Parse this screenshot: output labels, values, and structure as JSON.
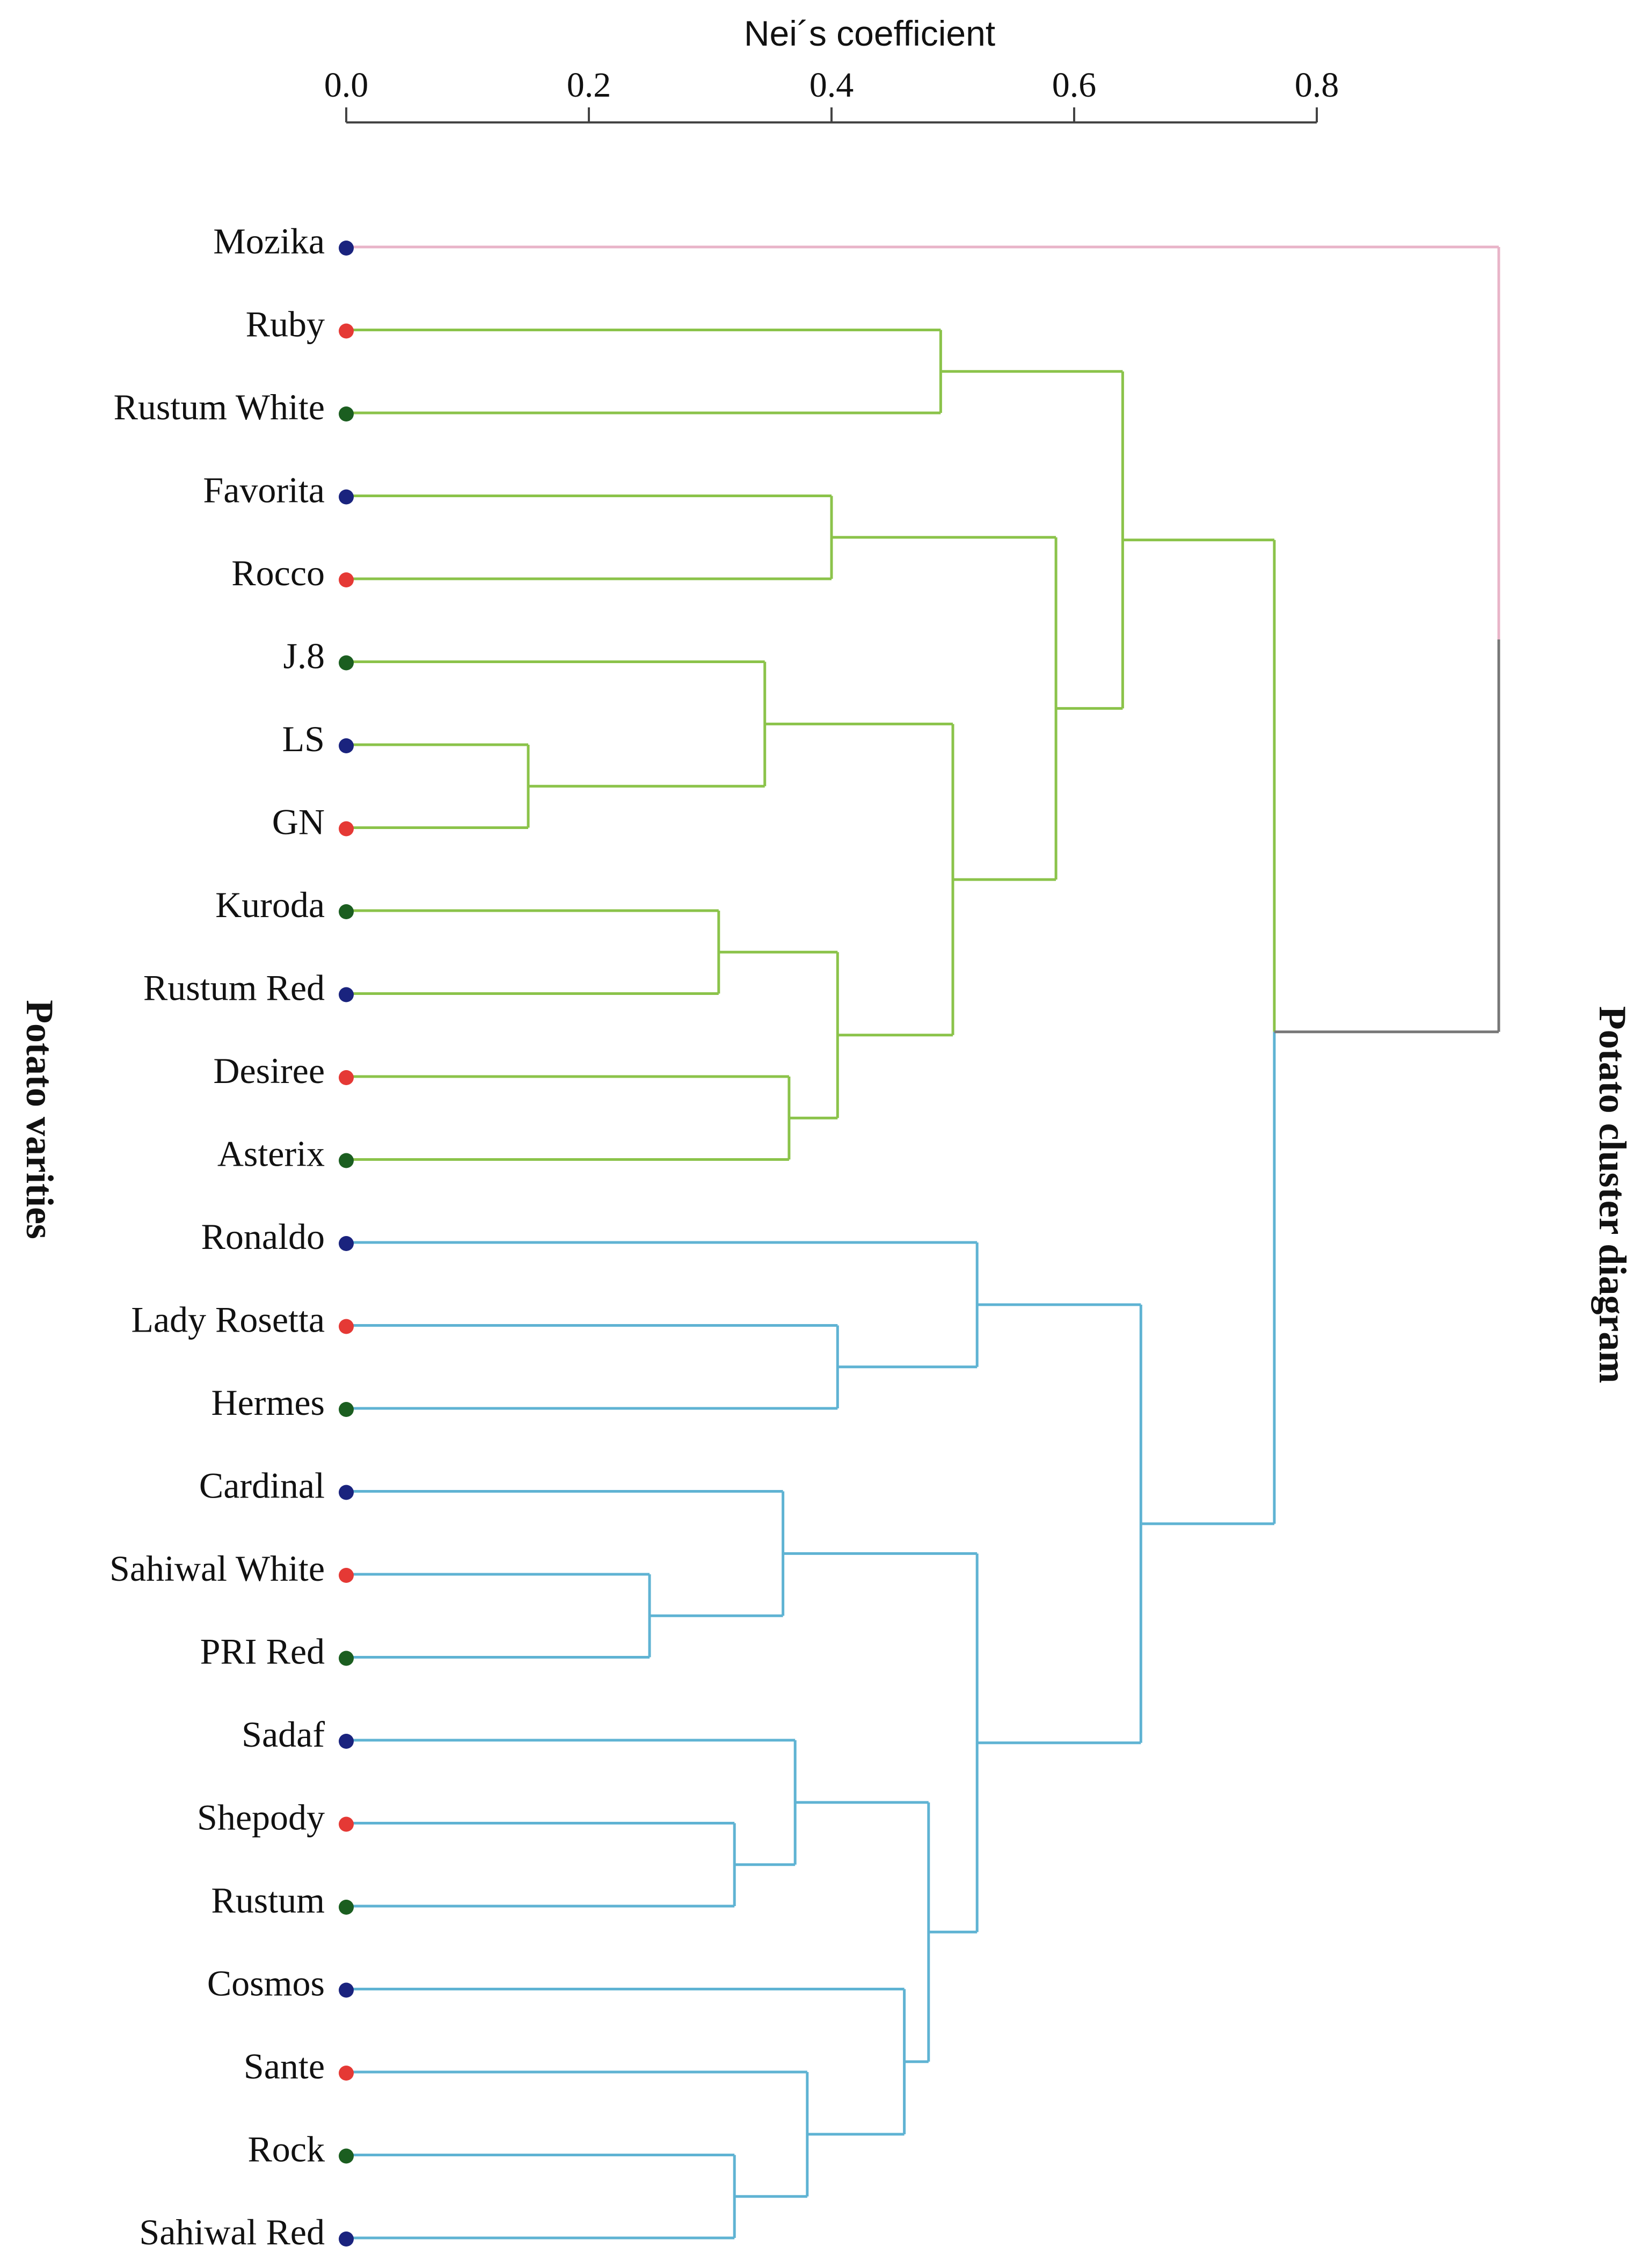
{
  "chart_data": {
    "type": "dendrogram",
    "title": "",
    "xlabel": "Nei´s coefficient",
    "ylabel_left": "Potato varities",
    "ylabel_right": "Potato cluster diagram",
    "xticks": [
      "0.0",
      "0.2",
      "0.4",
      "0.6",
      "0.8"
    ],
    "xlim": [
      0,
      0.8
    ],
    "grid": false,
    "leaves": [
      {
        "name": "Mozika",
        "color": "#1a237e"
      },
      {
        "name": "Ruby",
        "color": "#e53935"
      },
      {
        "name": "Rustum White",
        "color": "#1b5e20"
      },
      {
        "name": "Favorita",
        "color": "#1a237e"
      },
      {
        "name": "Rocco",
        "color": "#e53935"
      },
      {
        "name": "J.8",
        "color": "#1b5e20"
      },
      {
        "name": "LS",
        "color": "#1a237e"
      },
      {
        "name": "GN",
        "color": "#e53935"
      },
      {
        "name": "Kuroda",
        "color": "#1b5e20"
      },
      {
        "name": "Rustum Red",
        "color": "#1a237e"
      },
      {
        "name": "Desiree",
        "color": "#e53935"
      },
      {
        "name": "Asterix",
        "color": "#1b5e20"
      },
      {
        "name": "Ronaldo",
        "color": "#1a237e"
      },
      {
        "name": "Lady Rosetta",
        "color": "#e53935"
      },
      {
        "name": "Hermes",
        "color": "#1b5e20"
      },
      {
        "name": "Cardinal",
        "color": "#1a237e"
      },
      {
        "name": "Sahiwal White",
        "color": "#e53935"
      },
      {
        "name": "PRI Red",
        "color": "#1b5e20"
      },
      {
        "name": "Sadaf",
        "color": "#1a237e"
      },
      {
        "name": "Shepody",
        "color": "#e53935"
      },
      {
        "name": "Rustum",
        "color": "#1b5e20"
      },
      {
        "name": "Cosmos",
        "color": "#1a237e"
      },
      {
        "name": "Sante",
        "color": "#e53935"
      },
      {
        "name": "Rock",
        "color": "#1b5e20"
      },
      {
        "name": "Sahiwal Red",
        "color": "#1a237e"
      }
    ],
    "merges": [
      {
        "a": "LS",
        "b": "GN",
        "h": 0.15
      },
      {
        "a": "Sahiwal White",
        "b": "PRI Red",
        "h": 0.25
      },
      {
        "a": "Kuroda",
        "b": "Rustum Red",
        "h": 0.307
      },
      {
        "a": "Shepody",
        "b": "Rustum",
        "h": 0.32
      },
      {
        "a": "Rock",
        "b": "Sahiwal Red",
        "h": 0.32
      },
      {
        "a": "J.8",
        "b": "LS,GN",
        "h": 0.345
      },
      {
        "a": "Cardinal",
        "b": "Sahiwal White,PRI Red",
        "h": 0.36
      },
      {
        "a": "Desiree",
        "b": "Asterix",
        "h": 0.365
      },
      {
        "a": "Sadaf",
        "b": "Shepody,Rustum",
        "h": 0.37
      },
      {
        "a": "Sante",
        "b": "Rock,Sahiwal Red",
        "h": 0.38
      },
      {
        "a": "Favorita",
        "b": "Rocco",
        "h": 0.4
      },
      {
        "a": "Lady Rosetta",
        "b": "Hermes",
        "h": 0.405
      },
      {
        "a": "Kuroda,Rustum Red",
        "b": "Desiree,Asterix",
        "h": 0.405
      },
      {
        "a": "Cosmos",
        "b": "Sante,Rock,Sahiwal Red",
        "h": 0.46
      },
      {
        "a": "Sadaf,Shepody,Rustum",
        "b": "Cosmos,Sante,Rock,Sahiwal Red",
        "h": 0.48
      },
      {
        "a": "Ruby",
        "b": "Rustum White",
        "h": 0.49
      },
      {
        "a": "J.8,LS,GN",
        "b": "Kuroda,Rustum Red,Desiree,Asterix",
        "h": 0.5
      },
      {
        "a": "Ronaldo",
        "b": "Lady Rosetta,Hermes",
        "h": 0.52
      },
      {
        "a": "Cardinal,Sahiwal White,PRI Red",
        "b": "Sadaf,Shepody,Rustum,Cosmos,Sante,Rock,Sahiwal Red",
        "h": 0.52
      },
      {
        "a": "Favorita,Rocco",
        "b": "J.8,LS,GN,Kuroda,Rustum Red,Desiree,Asterix",
        "h": 0.585
      },
      {
        "a": "Ruby,Rustum White",
        "b": "Favorita,Rocco,J.8,LS,GN,Kuroda,Rustum Red,Desiree,Asterix",
        "h": 0.64
      },
      {
        "a": "Ronaldo,Lady Rosetta,Hermes",
        "b": "Cardinal,Sahiwal White,PRI Red,Sadaf,Shepody,Rustum,Cosmos,Sante,Rock,Sahiwal Red",
        "h": 0.655
      },
      {
        "a": "Ruby..Asterix",
        "b": "Ronaldo..Sahiwal Red",
        "h": 0.765
      },
      {
        "a": "Mozika",
        "b": "Ruby..Sahiwal Red",
        "h": 0.95
      }
    ],
    "cluster_colors": {
      "outgroup": "#e8b4c8",
      "group_a": "#8bc34a",
      "group_b": "#5fb3d3",
      "root": "#777777"
    }
  }
}
